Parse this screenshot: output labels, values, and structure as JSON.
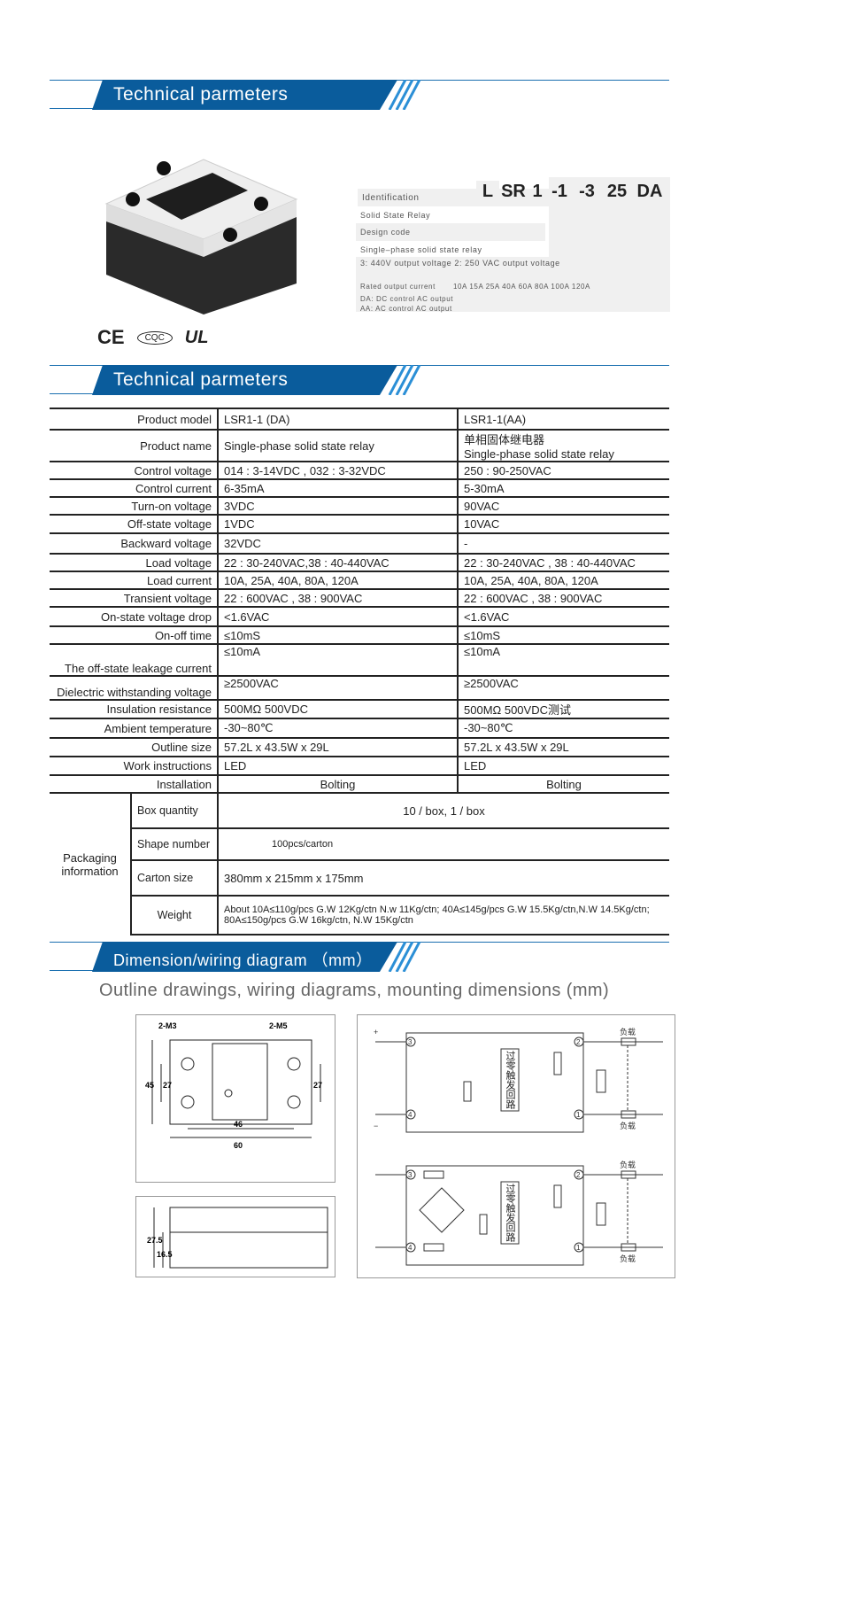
{
  "sections": {
    "s1": "Technical parmeters",
    "s2": "Technical parmeters",
    "s3_title": "Dimension/wiring diagram",
    "s3_unit": "（mm）",
    "subtitle": "Outline drawings, wiring diagrams, mounting dimensions (mm)"
  },
  "colors": {
    "accent": "#0a5c9c"
  },
  "certs": [
    "CE",
    "CQC",
    "UL"
  ],
  "identification": {
    "label": "Identification",
    "codes": [
      "L",
      "SR",
      "1",
      "-1",
      "-3",
      "25",
      "DA"
    ],
    "rows": [
      "Solid State Relay",
      "Design code",
      "Single–phase solid state relay",
      "3: 440V output voltage  2: 250 VAC output voltage"
    ],
    "rated_label": "Rated output current",
    "rated_values": "10A 15A 25A 40A 60A 80A 100A 120A",
    "da": "DA: DC control AC output",
    "aa": "AA: AC control AC output"
  },
  "spec_table": {
    "rows": [
      [
        "Product model",
        "LSR1-1 (DA)",
        "LSR1-1(AA)"
      ],
      [
        "Product name",
        "Single-phase solid state relay",
        "单相固体继电器\nSingle-phase solid state relay"
      ],
      [
        "Control voltage",
        "014 : 3-14VDC , 032 : 3-32VDC",
        "250 : 90-250VAC"
      ],
      [
        "Control current",
        "6-35mA",
        "5-30mA"
      ],
      [
        "Turn-on voltage",
        "3VDC",
        "90VAC"
      ],
      [
        "Off-state voltage",
        "1VDC",
        "10VAC"
      ],
      [
        "Backward voltage",
        "32VDC",
        "-"
      ],
      [
        "Load voltage",
        "22 : 30-240VAC,38 : 40-440VAC",
        "22 : 30-240VAC , 38 : 40-440VAC"
      ],
      [
        "Load current",
        "10A, 25A, 40A,  80A, 120A",
        "10A, 25A, 40A,  80A, 120A"
      ],
      [
        "Transient voltage",
        " 22 : 600VAC , 38 : 900VAC",
        "22 : 600VAC , 38 : 900VAC"
      ],
      [
        "On-state voltage drop",
        "<1.6VAC",
        "<1.6VAC"
      ],
      [
        "On-off time",
        "≤10mS",
        "≤10mS"
      ],
      [
        "The off-state leakage current",
        "≤10mA",
        "≤10mA"
      ],
      [
        "Dielectric withstanding voltage",
        "≥2500VAC",
        "≥2500VAC"
      ],
      [
        "Insulation resistance",
        "500MΩ 500VDC",
        "500MΩ 500VDC测试"
      ],
      [
        "Ambient temperature",
        "-30~80℃",
        "-30~80℃"
      ],
      [
        "Outline size",
        "57.2L x 43.5W x 29L",
        "57.2L x 43.5W x 29L"
      ],
      [
        "Work instructions",
        "LED",
        "LED"
      ],
      [
        "Installation",
        "Bolting",
        "Bolting"
      ]
    ],
    "packaging": {
      "label": "Packaging information",
      "rows": [
        [
          "Box quantity",
          "10 / box, 1 / box"
        ],
        [
          "Shape number",
          "100pcs/carton"
        ],
        [
          "Carton size",
          "380mm x 215mm x 175mm"
        ],
        [
          "Weight",
          "About 10A≤110g/pcs G.W 12Kg/ctn N.w 11Kg/ctn; 40A≤145g/pcs G.W 15.5Kg/ctn,N.W 14.5Kg/ctn; 80A≤150g/pcs G.W 16kg/ctn, N.W 15Kg/ctn"
        ]
      ]
    }
  },
  "dimension": {
    "m3": "2-M3",
    "m5": "2-M5",
    "d45": "45",
    "d27a": "27",
    "d27b": "27",
    "d46": "46",
    "d60": "60",
    "d275": "27.5",
    "d165": "16.5"
  },
  "wiring": {
    "load": "负载",
    "plus": "+",
    "minus": "−",
    "n3": "3",
    "n4": "4",
    "n1": "1",
    "n2": "2",
    "circuit": "过零触发回路"
  }
}
